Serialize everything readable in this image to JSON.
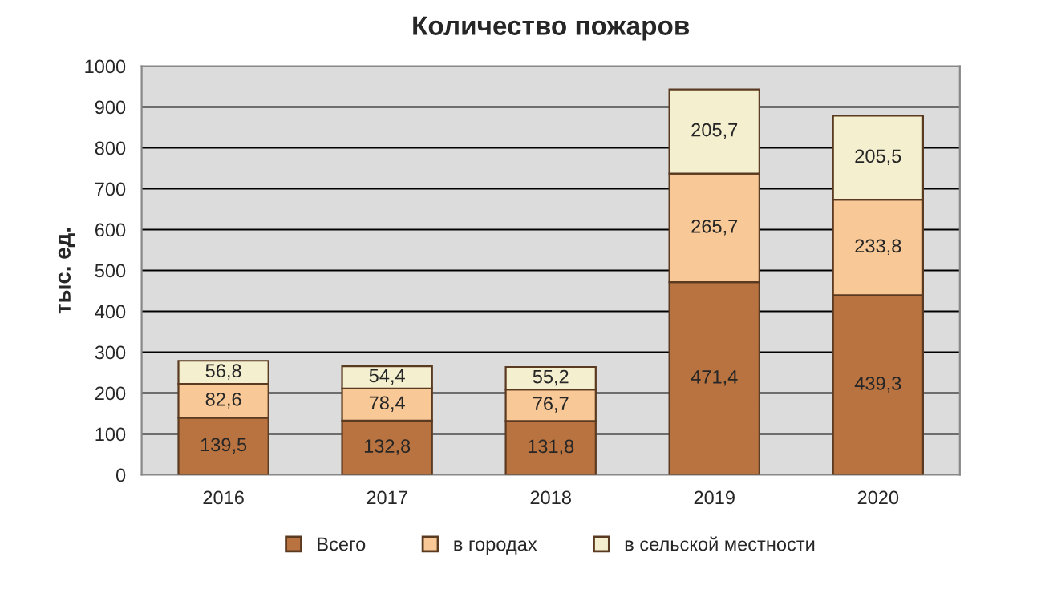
{
  "chart_data": {
    "type": "bar",
    "title": "Количество пожаров",
    "ylabel": "тыс. ед.",
    "categories": [
      "2016",
      "2017",
      "2018",
      "2019",
      "2020"
    ],
    "stacked": true,
    "ylim": [
      0,
      1000
    ],
    "yticks": [
      0,
      100,
      200,
      300,
      400,
      500,
      600,
      700,
      800,
      900,
      1000
    ],
    "grid": "y",
    "legend": "bottom",
    "series": [
      {
        "name": "Всего",
        "color": "#b87340",
        "values": [
          139.5,
          132.8,
          131.8,
          471.4,
          439.3
        ],
        "value_labels": [
          "139,5",
          "132,8",
          "131,8",
          "471,4",
          "439,3"
        ]
      },
      {
        "name": "в городах",
        "color": "#f8c896",
        "values": [
          82.6,
          78.4,
          76.7,
          265.7,
          233.8
        ],
        "value_labels": [
          "82,6",
          "78,4",
          "76,7",
          "265,7",
          "233,8"
        ]
      },
      {
        "name": "в сельской местности",
        "color": "#f4efcf",
        "values": [
          56.8,
          54.4,
          55.2,
          205.7,
          205.5
        ],
        "value_labels": [
          "56,8",
          "54,4",
          "55,2",
          "205,7",
          "205,5"
        ]
      }
    ]
  }
}
